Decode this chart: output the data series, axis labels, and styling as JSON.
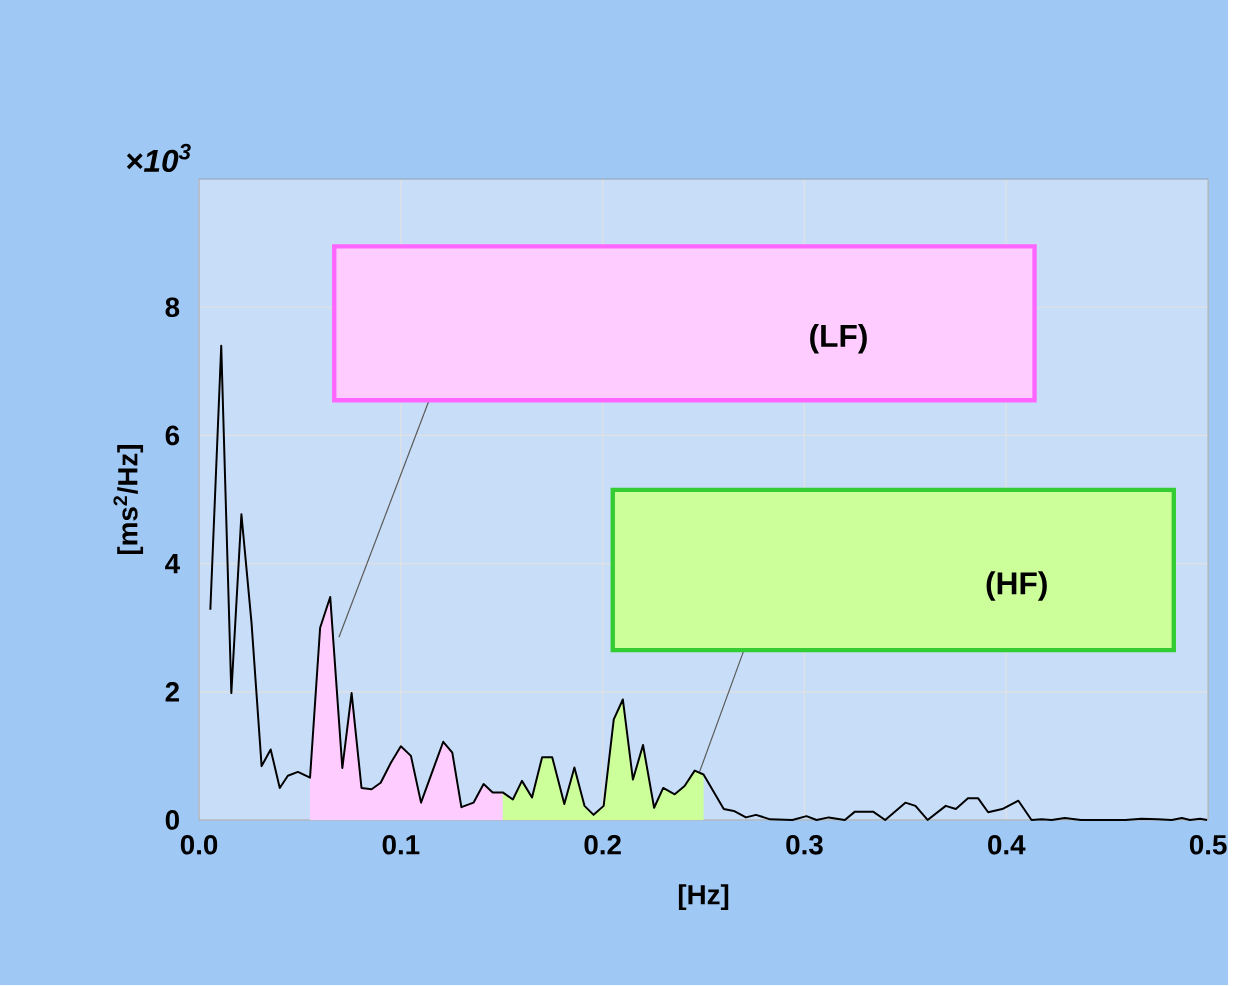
{
  "chart_data": {
    "type": "line",
    "xlabel": "[Hz]",
    "ylabel": "[ms$^{2}$/Hz]",
    "grid": true,
    "annotations": [
      "×10$^{3}$",
      "(LF)",
      "(HF)"
    ],
    "series": [
      {
        "color": "#000000",
        "x": [
          0.0056,
          0.011,
          0.016,
          0.021,
          0.026,
          0.031,
          0.0355,
          0.04,
          0.044,
          0.049,
          0.055,
          0.06,
          0.065,
          0.071,
          0.0756,
          0.0805,
          0.0855,
          0.09,
          0.095,
          0.1,
          0.105,
          0.11,
          0.116,
          0.121,
          0.1255,
          0.13,
          0.136,
          0.141,
          0.1455,
          0.1505,
          0.1555,
          0.16,
          0.165,
          0.17,
          0.175,
          0.181,
          0.186,
          0.191,
          0.1955,
          0.2005,
          0.2055,
          0.21,
          0.215,
          0.22,
          0.2255,
          0.23,
          0.2357,
          0.2406,
          0.2456,
          0.25,
          0.26,
          0.265,
          0.271,
          0.276,
          0.283,
          0.294,
          0.301,
          0.306,
          0.312,
          0.32,
          0.325,
          0.334,
          0.34,
          0.35,
          0.355,
          0.361,
          0.37,
          0.375,
          0.381,
          0.386,
          0.391,
          0.398,
          0.406,
          0.4125,
          0.4175,
          0.4225,
          0.429,
          0.437,
          0.45,
          0.459,
          0.467,
          0.475,
          0.482,
          0.487,
          0.491,
          0.496,
          0.4995
        ],
        "values": [
          3.28,
          7.4,
          1.98,
          4.77,
          3.08,
          0.84,
          1.1,
          0.5,
          0.69,
          0.75,
          0.66,
          3.0,
          3.48,
          0.81,
          1.98,
          0.5,
          0.48,
          0.58,
          0.89,
          1.15,
          1.0,
          0.27,
          0.79,
          1.22,
          1.05,
          0.2,
          0.27,
          0.56,
          0.43,
          0.43,
          0.32,
          0.61,
          0.35,
          0.98,
          0.98,
          0.25,
          0.82,
          0.22,
          0.08,
          0.22,
          1.57,
          1.88,
          0.63,
          1.17,
          0.19,
          0.5,
          0.4,
          0.53,
          0.77,
          0.71,
          0.17,
          0.14,
          0.04,
          0.08,
          0.01,
          0.0,
          0.06,
          0.0,
          0.04,
          0.0,
          0.13,
          0.13,
          0.0,
          0.27,
          0.22,
          0.0,
          0.22,
          0.17,
          0.34,
          0.34,
          0.12,
          0.17,
          0.3,
          0.0,
          0.01,
          0.0,
          0.03,
          0.0,
          0.0,
          0.0,
          0.02,
          0.01,
          0.0,
          0.03,
          0.0,
          0.02,
          0.0
        ]
      },
      {
        "type": "area",
        "color": "#ffccff",
        "x": [
          0.055,
          0.06,
          0.065,
          0.071,
          0.0756,
          0.0805,
          0.0855,
          0.09,
          0.095,
          0.1,
          0.105,
          0.11,
          0.116,
          0.121,
          0.1255,
          0.13,
          0.136,
          0.141,
          0.1455,
          0.1505
        ],
        "values": [
          0.66,
          3.0,
          3.48,
          0.81,
          1.98,
          0.5,
          0.48,
          0.58,
          0.89,
          1.15,
          1.0,
          0.27,
          0.79,
          1.22,
          1.05,
          0.2,
          0.27,
          0.56,
          0.43,
          0.43
        ]
      },
      {
        "type": "area",
        "color": "#ccff99",
        "x": [
          0.1505,
          0.1555,
          0.16,
          0.165,
          0.17,
          0.175,
          0.181,
          0.186,
          0.191,
          0.1955,
          0.2005,
          0.2055,
          0.21,
          0.215,
          0.22,
          0.2255,
          0.23,
          0.2357,
          0.2406,
          0.2456,
          0.25
        ],
        "values": [
          0.43,
          0.32,
          0.61,
          0.35,
          0.98,
          0.98,
          0.25,
          0.82,
          0.22,
          0.08,
          0.22,
          1.57,
          1.88,
          0.63,
          1.17,
          0.19,
          0.5,
          0.4,
          0.53,
          0.77,
          0.71
        ]
      }
    ],
    "xlim": [
      0,
      0.5
    ],
    "ylim": [
      0,
      10
    ],
    "xticks": [
      {
        "value": 0,
        "label": "0.0"
      },
      0.1,
      0.2,
      0.3,
      0.4,
      0.5
    ],
    "yticks": [
      0,
      2,
      4,
      6,
      8
    ]
  }
}
